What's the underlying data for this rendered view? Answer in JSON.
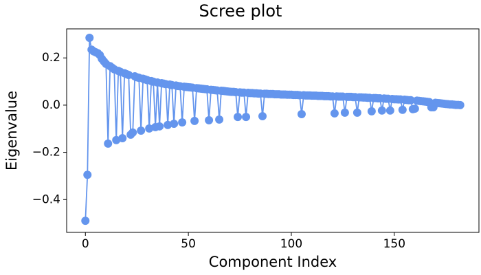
{
  "chart_data": {
    "type": "line",
    "title": "Scree plot",
    "x_label": "Component Index",
    "y_label": "Eigenvalue",
    "color": "#6495ed",
    "grid": false,
    "xlim": [
      -9.1,
      191.1
    ],
    "xticks": [
      0,
      50,
      100,
      150
    ],
    "ylim": [
      -0.539,
      0.323
    ],
    "yticks": [
      {
        "value": -0.4,
        "label": "−0.4"
      },
      {
        "value": -0.2,
        "label": "−0.2"
      },
      {
        "value": 0,
        "label": "0.0"
      },
      0.2
    ],
    "x": [
      0,
      1,
      2,
      3,
      4,
      5,
      6,
      7,
      8,
      9,
      10,
      11,
      12,
      13,
      14,
      15,
      16,
      17,
      18,
      19,
      20,
      21,
      22,
      23,
      24,
      25,
      26,
      27,
      28,
      29,
      30,
      31,
      32,
      33,
      34,
      35,
      36,
      37,
      38,
      39,
      40,
      41,
      42,
      43,
      44,
      45,
      46,
      47,
      48,
      49,
      50,
      51,
      52,
      53,
      54,
      55,
      56,
      57,
      58,
      59,
      60,
      61,
      62,
      63,
      64,
      65,
      66,
      67,
      68,
      69,
      70,
      71,
      72,
      73,
      74,
      75,
      76,
      77,
      78,
      79,
      80,
      81,
      82,
      83,
      84,
      85,
      86,
      87,
      88,
      89,
      90,
      91,
      92,
      93,
      94,
      95,
      96,
      97,
      98,
      99,
      100,
      101,
      102,
      103,
      104,
      105,
      106,
      107,
      108,
      109,
      110,
      111,
      112,
      113,
      114,
      115,
      116,
      117,
      118,
      119,
      120,
      121,
      122,
      123,
      124,
      125,
      126,
      127,
      128,
      129,
      130,
      131,
      132,
      133,
      134,
      135,
      136,
      137,
      138,
      139,
      140,
      141,
      142,
      143,
      144,
      145,
      146,
      147,
      148,
      149,
      150,
      151,
      152,
      153,
      154,
      155,
      156,
      157,
      158,
      159,
      160,
      161,
      162,
      163,
      164,
      165,
      166,
      167,
      168,
      169,
      170,
      171,
      172,
      173,
      174,
      175,
      176,
      177,
      178,
      179,
      180,
      181,
      182
    ],
    "values": [
      -0.49,
      -0.295,
      0.285,
      0.235,
      0.228,
      0.224,
      0.22,
      0.212,
      0.196,
      0.185,
      0.175,
      -0.163,
      0.165,
      0.158,
      0.152,
      -0.148,
      0.145,
      0.141,
      -0.14,
      0.135,
      0.131,
      0.128,
      -0.125,
      -0.116,
      0.122,
      0.118,
      0.116,
      -0.108,
      0.112,
      0.109,
      0.106,
      -0.099,
      0.102,
      0.099,
      -0.093,
      0.096,
      -0.09,
      0.093,
      0.091,
      0.089,
      -0.084,
      0.087,
      0.085,
      -0.079,
      0.083,
      0.081,
      0.08,
      -0.073,
      0.078,
      0.077,
      0.076,
      0.075,
      0.074,
      -0.067,
      0.072,
      0.071,
      0.07,
      0.069,
      0.068,
      0.067,
      -0.064,
      0.065,
      0.064,
      0.063,
      0.062,
      -0.061,
      0.061,
      0.06,
      0.059,
      0.058,
      0.057,
      0.056,
      0.056,
      0.055,
      -0.05,
      0.054,
      0.053,
      0.053,
      -0.05,
      0.052,
      0.051,
      0.051,
      0.05,
      0.05,
      0.049,
      0.049,
      -0.047,
      0.048,
      0.048,
      0.047,
      0.047,
      0.047,
      0.046,
      0.046,
      0.046,
      0.045,
      0.045,
      0.045,
      0.044,
      0.044,
      0.044,
      0.043,
      0.043,
      0.043,
      0.042,
      -0.038,
      0.042,
      0.041,
      0.041,
      0.041,
      0.04,
      0.04,
      0.04,
      0.039,
      0.039,
      0.039,
      0.038,
      0.038,
      0.038,
      0.037,
      0.037,
      -0.035,
      0.037,
      0.036,
      0.036,
      0.036,
      -0.032,
      0.035,
      0.035,
      0.035,
      0.034,
      0.034,
      -0.032,
      0.033,
      0.033,
      0.032,
      0.032,
      0.031,
      0.031,
      -0.026,
      0.03,
      0.03,
      0.029,
      0.029,
      -0.023,
      0.028,
      0.027,
      0.027,
      -0.023,
      0.026,
      0.025,
      0.025,
      0.024,
      0.024,
      -0.02,
      0.023,
      0.022,
      0.021,
      0.021,
      -0.017,
      -0.015,
      0.019,
      0.018,
      0.017,
      0.016,
      0.015,
      0.014,
      0.013,
      -0.009,
      -0.009,
      0.01,
      0.009,
      0.008,
      0.007,
      0.006,
      0.005,
      0.004,
      0.003,
      0.003,
      0.002,
      0.001,
      0.001,
      0
    ]
  }
}
